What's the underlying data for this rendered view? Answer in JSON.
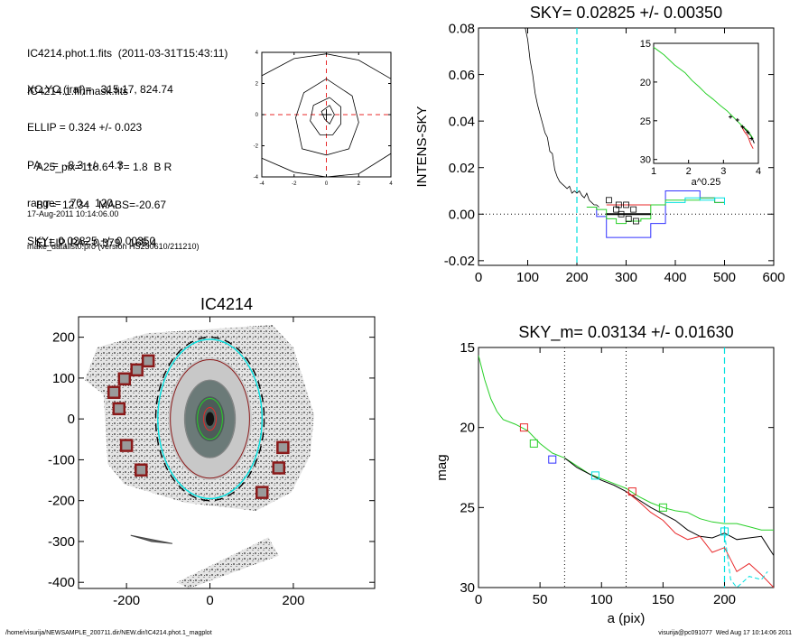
{
  "header": {
    "lines1": [
      "IC4214.phot.1.fits  (2011-03-31T15:43:11)",
      "IC4214.1.finmask.fits"
    ],
    "lines2": [
      "XC,YC (iraf)=   315.17, 824.74",
      "ELLIP = 0.324 +/- 0.023",
      "PA    =  -8.3 +/-   4.3",
      "range=   70.-  120.",
      "SKY= 0.02825 +/- 0.00350"
    ],
    "lines3": [
      "A25_pix=118.6   T= 1.8  B R",
      "BT=  12.34   MABS=-20.67",
      "ELLIP, PA= 0.379   165.4"
    ],
    "lines4": [
      "17-Aug-2011 10:14:06.00",
      "make_datalist0.pro (version HS230610/211210)"
    ]
  },
  "footer": {
    "left": "/home/visurija/NEWSAMPLE_200711.dir/NEW.dir/IC4214.phot.1_magplot",
    "right": "visurija@pc091077  Wed Aug 17 10:14:06 2011"
  },
  "colors": {
    "black": "#000000",
    "red": "#e8282a",
    "green": "#28d028",
    "blue": "#3232ff",
    "cyan": "#00e0e0",
    "maroon": "#8b1a1a",
    "gray": "#888888"
  },
  "chart_data": [
    {
      "id": "contour",
      "type": "scatter",
      "title": "",
      "xlim": [
        -4,
        4
      ],
      "ylim": [
        -4,
        4
      ],
      "xticks": [
        -4,
        -2,
        0,
        2,
        4
      ],
      "yticks": [
        -4,
        -2,
        0,
        2,
        4
      ],
      "contours": [
        [
          [
            -4,
            2.5
          ],
          [
            -2,
            3.6
          ],
          [
            0,
            3.9
          ],
          [
            2,
            3.5
          ],
          [
            4,
            2.3
          ]
        ],
        [
          [
            -4,
            -2.8
          ],
          [
            -2,
            -3.7
          ],
          [
            0,
            -4
          ],
          [
            2,
            -3.8
          ],
          [
            4,
            -2.5
          ]
        ],
        [
          [
            0,
            2.3
          ],
          [
            1.6,
            1.2
          ],
          [
            2,
            -0.5
          ],
          [
            1.4,
            -2.2
          ],
          [
            0,
            -2.6
          ],
          [
            -1.5,
            -2.2
          ],
          [
            -1.9,
            -0.2
          ],
          [
            -1.4,
            1.4
          ],
          [
            0,
            2.3
          ]
        ],
        [
          [
            0.2,
            1.1
          ],
          [
            0.9,
            0.5
          ],
          [
            0.9,
            -0.6
          ],
          [
            0.4,
            -1.3
          ],
          [
            -0.4,
            -1.3
          ],
          [
            -1.0,
            -0.4
          ],
          [
            -0.8,
            0.6
          ],
          [
            0.2,
            1.1
          ]
        ],
        [
          [
            0.2,
            0.6
          ],
          [
            0.5,
            0
          ],
          [
            0.2,
            -0.6
          ],
          [
            -0.1,
            -0.3
          ],
          [
            -0.3,
            0.2
          ],
          [
            0.2,
            0.6
          ]
        ]
      ],
      "center": [
        0,
        0
      ]
    },
    {
      "id": "sky",
      "type": "line",
      "title": "SKY= 0.02825 +/- 0.00350",
      "xlabel": "",
      "ylabel": "INTENS-SKY",
      "xlim": [
        0,
        600
      ],
      "ylim": [
        -0.022,
        0.08
      ],
      "xticks": [
        0,
        100,
        200,
        300,
        400,
        500,
        600
      ],
      "yticks": [
        -0.02,
        0.0,
        0.02,
        0.04,
        0.06,
        0.08
      ],
      "ytick_labels": [
        "-0.02",
        "0.00",
        "0.02",
        "0.04",
        "0.06",
        "0.08"
      ],
      "vline": 200,
      "sky_level": 0,
      "profile": [
        [
          95,
          0.08
        ],
        [
          100,
          0.075
        ],
        [
          105,
          0.066
        ],
        [
          110,
          0.06
        ],
        [
          115,
          0.052
        ],
        [
          120,
          0.047
        ],
        [
          125,
          0.043
        ],
        [
          130,
          0.039
        ],
        [
          135,
          0.035
        ],
        [
          140,
          0.033
        ],
        [
          145,
          0.027
        ],
        [
          150,
          0.026
        ],
        [
          155,
          0.019
        ],
        [
          160,
          0.016
        ],
        [
          165,
          0.014
        ],
        [
          170,
          0.013
        ],
        [
          175,
          0.012
        ],
        [
          180,
          0.011
        ],
        [
          185,
          0.012
        ],
        [
          190,
          0.009
        ],
        [
          195,
          0.01
        ],
        [
          200,
          0.009
        ],
        [
          205,
          0.01
        ],
        [
          210,
          0.008
        ],
        [
          215,
          0.007
        ],
        [
          220,
          0.009
        ],
        [
          225,
          0.006
        ],
        [
          230,
          0.005
        ],
        [
          235,
          0.004
        ],
        [
          240,
          0.004
        ],
        [
          245,
          0.003
        ]
      ],
      "steps": [
        {
          "color": "blue",
          "x": [
            220,
            240,
            260,
            280,
            300,
            330,
            350,
            380,
            420,
            450,
            480,
            500
          ],
          "y": [
            0.003,
            -0.001,
            -0.01,
            -0.01,
            -0.01,
            -0.01,
            -0.004,
            0.01,
            0.01,
            0.007,
            0.005,
            0.005
          ]
        },
        {
          "color": "green",
          "x": [
            220,
            240,
            260,
            280,
            300,
            330,
            350,
            380,
            420,
            450,
            480,
            500
          ],
          "y": [
            0.003,
            0.002,
            -0.002,
            -0.004,
            -0.003,
            -0.002,
            0.004,
            0.006,
            0.006,
            0.007,
            0.005,
            0.005
          ]
        },
        {
          "color": "red",
          "x": [
            260,
            280,
            300,
            330,
            350
          ],
          "y": [
            0.004,
            0.004,
            0.004,
            0.004,
            0.004
          ]
        },
        {
          "color": "cyan",
          "x": [
            380,
            420,
            450,
            480,
            500
          ],
          "y": [
            0.005,
            0.007,
            0.006,
            0.007,
            0.004
          ]
        },
        {
          "color": "black",
          "x": [
            260,
            350
          ],
          "y": [
            0.0,
            0.0
          ]
        }
      ],
      "squares": [
        [
          265,
          0.006
        ],
        [
          280,
          0.002
        ],
        [
          285,
          0.004
        ],
        [
          290,
          0.0
        ],
        [
          300,
          0.004
        ],
        [
          305,
          -0.002
        ],
        [
          315,
          0.002
        ],
        [
          320,
          -0.003
        ]
      ],
      "inset": {
        "xlabel": "a^0.25",
        "xlim": [
          1,
          4
        ],
        "ylim": [
          15,
          30.5
        ],
        "xticks": [
          1,
          2,
          3,
          4
        ],
        "yticks": [
          15,
          20,
          25,
          30
        ],
        "line_green": [
          [
            1.0,
            15.5
          ],
          [
            1.3,
            16.5
          ],
          [
            1.6,
            17.8
          ],
          [
            1.9,
            18.8
          ],
          [
            2.1,
            19.8
          ],
          [
            2.3,
            20.6
          ],
          [
            2.5,
            21.5
          ],
          [
            2.7,
            22.2
          ],
          [
            2.9,
            23.0
          ],
          [
            3.1,
            23.7
          ],
          [
            3.3,
            24.6
          ],
          [
            3.5,
            25.5
          ],
          [
            3.7,
            26.3
          ],
          [
            3.85,
            27.3
          ]
        ],
        "line_black": [
          [
            3.5,
            25.6
          ],
          [
            3.6,
            26.0
          ],
          [
            3.7,
            26.5
          ],
          [
            3.8,
            27.0
          ],
          [
            3.88,
            27.9
          ]
        ],
        "line_red": [
          [
            3.5,
            25.6
          ],
          [
            3.6,
            26.4
          ],
          [
            3.7,
            27.0
          ],
          [
            3.78,
            28.0
          ],
          [
            3.85,
            28.6
          ]
        ],
        "points": [
          [
            3.2,
            24.5
          ],
          [
            3.4,
            24.9
          ],
          [
            3.55,
            25.8
          ],
          [
            3.7,
            26.5
          ],
          [
            3.8,
            27.3
          ]
        ]
      }
    },
    {
      "id": "image",
      "type": "scatter",
      "title": "IC4214",
      "xlabel": "",
      "ylabel": "",
      "xlim": [
        -315,
        395
      ],
      "ylim": [
        -415,
        250
      ],
      "xticks": [
        -200,
        0,
        200
      ],
      "yticks": [
        -400,
        -300,
        -200,
        -100,
        0,
        100,
        200
      ],
      "galaxy_center": [
        0,
        0
      ],
      "ellipses": [
        {
          "a": 95,
          "b": 145,
          "color": "maroon"
        },
        {
          "a": 60,
          "b": 95,
          "color": "gray"
        },
        {
          "a": 30,
          "b": 50,
          "color": "green"
        },
        {
          "a": 15,
          "b": 28,
          "color": "red"
        },
        {
          "a": 125,
          "b": 195,
          "color": "cyan"
        },
        {
          "a": 130,
          "b": 200,
          "color": "black"
        }
      ],
      "masked_stars": [
        [
          -148,
          142
        ],
        [
          -175,
          120
        ],
        [
          -205,
          98
        ],
        [
          -230,
          65
        ],
        [
          -218,
          25
        ],
        [
          -200,
          -65
        ],
        [
          -165,
          -125
        ],
        [
          175,
          -70
        ],
        [
          165,
          -120
        ],
        [
          125,
          -180
        ]
      ]
    },
    {
      "id": "mag",
      "type": "line",
      "title": "SKY_m=  0.03134 +/- 0.01630",
      "xlabel": "a (pix)",
      "ylabel": "mag",
      "xlim": [
        0,
        240
      ],
      "ylim": [
        15,
        30
      ],
      "xticks": [
        0,
        50,
        100,
        150,
        200
      ],
      "yticks": [
        15,
        20,
        25,
        30
      ],
      "vlines_dotted": [
        70,
        120
      ],
      "vline_cyan": 200,
      "series": [
        {
          "color": "green",
          "points": [
            [
              0,
              15.5
            ],
            [
              5,
              17.0
            ],
            [
              10,
              18.2
            ],
            [
              15,
              19.0
            ],
            [
              20,
              19.5
            ],
            [
              30,
              19.8
            ],
            [
              40,
              20.2
            ],
            [
              50,
              21.0
            ],
            [
              60,
              21.6
            ],
            [
              70,
              21.9
            ],
            [
              80,
              22.4
            ],
            [
              90,
              22.9
            ],
            [
              100,
              23.2
            ],
            [
              110,
              23.5
            ],
            [
              120,
              23.8
            ],
            [
              130,
              24.3
            ],
            [
              140,
              24.7
            ],
            [
              150,
              25.0
            ],
            [
              160,
              25.2
            ],
            [
              170,
              25.3
            ],
            [
              180,
              25.7
            ],
            [
              190,
              25.9
            ],
            [
              200,
              26.0
            ],
            [
              210,
              26.0
            ],
            [
              220,
              26.2
            ],
            [
              230,
              26.4
            ],
            [
              240,
              26.4
            ]
          ]
        },
        {
          "color": "black",
          "points": [
            [
              70,
              21.9
            ],
            [
              80,
              22.5
            ],
            [
              90,
              22.9
            ],
            [
              100,
              23.3
            ],
            [
              110,
              23.6
            ],
            [
              120,
              24.0
            ],
            [
              130,
              24.5
            ],
            [
              140,
              25.0
            ],
            [
              150,
              25.4
            ],
            [
              160,
              25.8
            ],
            [
              170,
              26.4
            ],
            [
              180,
              26.8
            ],
            [
              190,
              26.9
            ],
            [
              200,
              26.6
            ],
            [
              210,
              27.0
            ],
            [
              220,
              26.9
            ],
            [
              230,
              26.8
            ],
            [
              240,
              28.0
            ]
          ]
        },
        {
          "color": "red",
          "points": [
            [
              120,
              24.0
            ],
            [
              130,
              24.6
            ],
            [
              140,
              25.3
            ],
            [
              150,
              25.8
            ],
            [
              160,
              26.6
            ],
            [
              170,
              27.0
            ],
            [
              180,
              26.8
            ],
            [
              190,
              27.8
            ],
            [
              200,
              27.5
            ],
            [
              210,
              29.0
            ],
            [
              220,
              28.5
            ],
            [
              230,
              29.2
            ],
            [
              240,
              30.0
            ]
          ]
        },
        {
          "color": "cyan",
          "points": [
            [
              200,
              26.6
            ],
            [
              205,
              29.5
            ],
            [
              210,
              30.0
            ],
            [
              220,
              29.3
            ],
            [
              230,
              29.5
            ],
            [
              235,
              29.0
            ]
          ]
        }
      ],
      "squares": [
        {
          "color": "red",
          "x": 37,
          "y": 20.0
        },
        {
          "color": "green",
          "x": 45,
          "y": 21.0
        },
        {
          "color": "blue",
          "x": 60,
          "y": 22.0
        },
        {
          "color": "cyan",
          "x": 95,
          "y": 23.0
        },
        {
          "color": "red",
          "x": 125,
          "y": 24.0
        },
        {
          "color": "green",
          "x": 150,
          "y": 25.0
        },
        {
          "color": "cyan",
          "x": 200,
          "y": 26.5
        }
      ]
    }
  ]
}
